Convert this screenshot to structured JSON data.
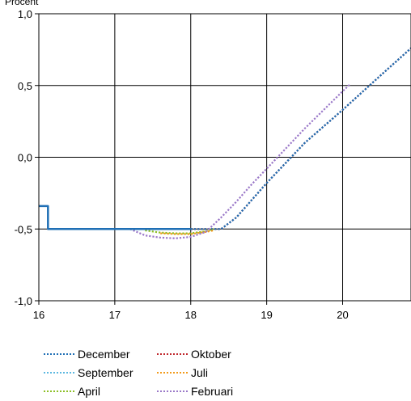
{
  "chart_data": {
    "type": "line",
    "ylabel": "Procent",
    "xlim": [
      16,
      20.9
    ],
    "ylim": [
      -1.0,
      1.0
    ],
    "x_ticks": [
      16,
      17,
      18,
      19,
      20
    ],
    "x_tick_labels": [
      "16",
      "17",
      "18",
      "19",
      "20"
    ],
    "y_ticks": [
      -1.0,
      -0.5,
      0.0,
      0.5,
      1.0
    ],
    "y_tick_labels": [
      "-1,0",
      "-0,5",
      "0,0",
      "0,5",
      "1,0"
    ],
    "grid": true,
    "legend_position": "bottom",
    "series": [
      {
        "name": "December",
        "color": "#1f6fb5",
        "style": "dotted",
        "x": [
          18.0,
          18.4,
          18.6,
          19.0,
          19.5,
          20.0,
          20.5,
          20.9
        ],
        "y": [
          -0.5,
          -0.5,
          -0.42,
          -0.18,
          0.1,
          0.33,
          0.57,
          0.76
        ]
      },
      {
        "name": "Oktober",
        "color": "#c0282d",
        "style": "dotted",
        "x": [
          18.0,
          18.4,
          18.6,
          19.0,
          19.5,
          20.0,
          20.5,
          20.9
        ],
        "y": [
          -0.5,
          -0.5,
          -0.42,
          -0.18,
          0.1,
          0.33,
          0.57,
          0.76
        ]
      },
      {
        "name": "September",
        "color": "#5bb8e0",
        "style": "dotted",
        "x": [
          18.0,
          18.4,
          18.6,
          19.0,
          19.5,
          20.0,
          20.5,
          20.9
        ],
        "y": [
          -0.5,
          -0.5,
          -0.42,
          -0.18,
          0.1,
          0.33,
          0.57,
          0.76
        ]
      },
      {
        "name": "Juli",
        "color": "#f29a1a",
        "style": "dotted",
        "x": [
          17.6,
          17.8,
          18.0,
          18.2,
          18.3
        ],
        "y": [
          -0.53,
          -0.535,
          -0.535,
          -0.52,
          -0.51
        ]
      },
      {
        "name": "April",
        "color": "#8cbf26",
        "style": "dotted",
        "x": [
          17.4,
          17.6,
          17.8,
          18.0,
          18.2,
          18.3
        ],
        "y": [
          -0.51,
          -0.525,
          -0.53,
          -0.53,
          -0.515,
          -0.5
        ]
      },
      {
        "name": "Februari",
        "color": "#9a78c8",
        "style": "dotted",
        "x": [
          17.2,
          17.4,
          17.6,
          17.8,
          18.0,
          18.2,
          18.4,
          18.6,
          18.8,
          19.0,
          19.5,
          20.0,
          20.1
        ],
        "y": [
          -0.5,
          -0.545,
          -0.56,
          -0.565,
          -0.555,
          -0.52,
          -0.42,
          -0.31,
          -0.19,
          -0.08,
          0.2,
          0.46,
          0.51
        ]
      },
      {
        "name": "",
        "color": "#1f6fb5",
        "style": "solid",
        "x": [
          16.0,
          16.12,
          16.12,
          16.2,
          17.0,
          18.0
        ],
        "y": [
          -0.34,
          -0.34,
          -0.5,
          -0.5,
          -0.5,
          -0.5
        ]
      }
    ]
  },
  "legend": [
    {
      "label": "December",
      "color": "#1f6fb5"
    },
    {
      "label": "Oktober",
      "color": "#c0282d"
    },
    {
      "label": "September",
      "color": "#5bb8e0"
    },
    {
      "label": "Juli",
      "color": "#f29a1a"
    },
    {
      "label": "April",
      "color": "#8cbf26"
    },
    {
      "label": "Februari",
      "color": "#9a78c8"
    }
  ]
}
